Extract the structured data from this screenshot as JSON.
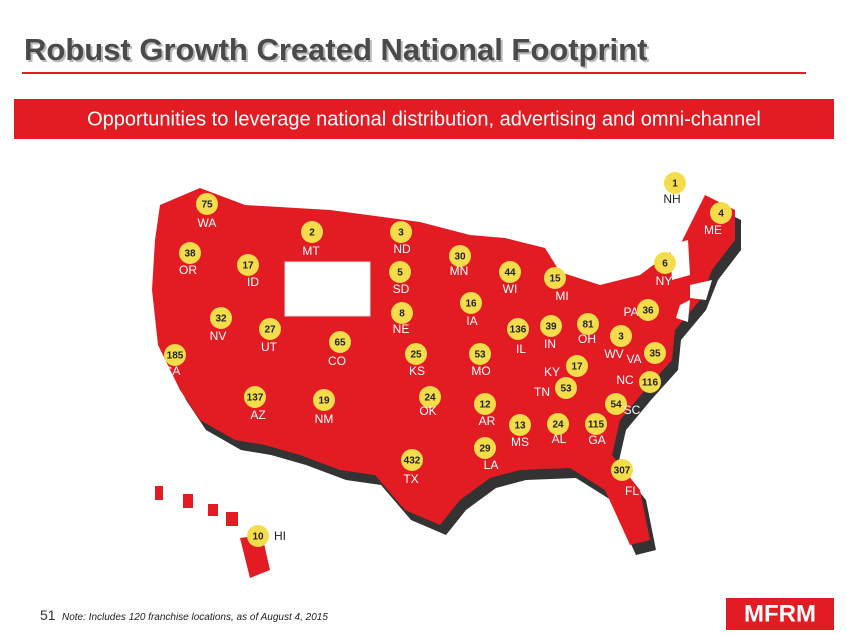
{
  "header": {
    "title": "Robust Growth Created National Footprint",
    "banner": "Opportunities to leverage national distribution, advertising and omni-channel"
  },
  "states": [
    {
      "abbr": "WA",
      "count": 75
    },
    {
      "abbr": "OR",
      "count": 38
    },
    {
      "abbr": "ID",
      "count": 17
    },
    {
      "abbr": "MT",
      "count": 2
    },
    {
      "abbr": "ND",
      "count": 3
    },
    {
      "abbr": "SD",
      "count": 5
    },
    {
      "abbr": "MN",
      "count": 30
    },
    {
      "abbr": "WI",
      "count": 44
    },
    {
      "abbr": "MI",
      "count": 15
    },
    {
      "abbr": "NY",
      "count": 6
    },
    {
      "abbr": "ME",
      "count": 4
    },
    {
      "abbr": "NH",
      "count": 1
    },
    {
      "abbr": "NE",
      "count": 8
    },
    {
      "abbr": "IA",
      "count": 16
    },
    {
      "abbr": "NV",
      "count": 32
    },
    {
      "abbr": "UT",
      "count": 27
    },
    {
      "abbr": "CO",
      "count": 65
    },
    {
      "abbr": "CA",
      "count": 185
    },
    {
      "abbr": "KS",
      "count": 25
    },
    {
      "abbr": "MO",
      "count": 53
    },
    {
      "abbr": "IL",
      "count": 136
    },
    {
      "abbr": "IN",
      "count": 39
    },
    {
      "abbr": "OH",
      "count": 81
    },
    {
      "abbr": "PA",
      "count": 36
    },
    {
      "abbr": "WV",
      "count": 3
    },
    {
      "abbr": "VA",
      "count": 35
    },
    {
      "abbr": "KY",
      "count": 17
    },
    {
      "abbr": "TN",
      "count": 53
    },
    {
      "abbr": "NC",
      "count": 116
    },
    {
      "abbr": "SC",
      "count": 54
    },
    {
      "abbr": "AZ",
      "count": 137
    },
    {
      "abbr": "NM",
      "count": 19
    },
    {
      "abbr": "OK",
      "count": 24
    },
    {
      "abbr": "AR",
      "count": 12
    },
    {
      "abbr": "MS",
      "count": 13
    },
    {
      "abbr": "AL",
      "count": 24
    },
    {
      "abbr": "GA",
      "count": 115
    },
    {
      "abbr": "LA",
      "count": 29
    },
    {
      "abbr": "TX",
      "count": 432
    },
    {
      "abbr": "FL",
      "count": 307
    },
    {
      "abbr": "HI",
      "count": 10
    }
  ],
  "footer": {
    "page": "51",
    "note": "Note: Includes 120 franchise locations, as of August 4, 2015",
    "logo": "MFRM"
  }
}
